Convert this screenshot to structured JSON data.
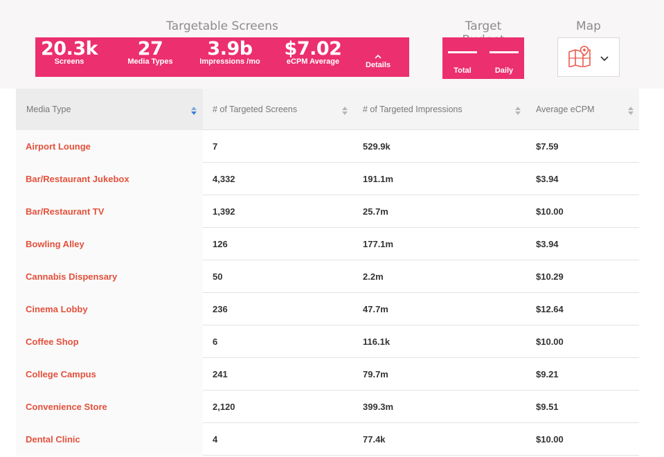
{
  "screens_section": {
    "title": "Targetable Screens",
    "stats": [
      {
        "value": "20.3k",
        "label": "Screens"
      },
      {
        "value": "27",
        "label": "Media Types"
      },
      {
        "value": "3.9b",
        "label": "Impressions /mo"
      },
      {
        "value": "$7.02",
        "label": "eCPM Average"
      }
    ],
    "details_label": "Details"
  },
  "budget_section": {
    "title": "Target Budget",
    "total_label": "Total",
    "daily_label": "Daily"
  },
  "map_section": {
    "title": "Map",
    "icon": "map-icon",
    "dropdown_icon": "chevron-down-icon"
  },
  "table": {
    "headers": [
      "Media Type",
      "# of Targeted Screens",
      "# of Targeted Impressions",
      "Average eCPM"
    ],
    "sorted_column": "Media Type",
    "rows": [
      [
        "Airport Lounge",
        "7",
        "529.9k",
        "$7.59"
      ],
      [
        "Bar/Restaurant Jukebox",
        "4,332",
        "191.1m",
        "$3.94"
      ],
      [
        "Bar/Restaurant TV",
        "1,392",
        "25.7m",
        "$10.00"
      ],
      [
        "Bowling Alley",
        "126",
        "177.1m",
        "$3.94"
      ],
      [
        "Cannabis Dispensary",
        "50",
        "2.2m",
        "$10.29"
      ],
      [
        "Cinema Lobby",
        "236",
        "47.7m",
        "$12.64"
      ],
      [
        "Coffee Shop",
        "6",
        "116.1k",
        "$10.00"
      ],
      [
        "College Campus",
        "241",
        "79.7m",
        "$9.21"
      ],
      [
        "Convenience Store",
        "2,120",
        "399.3m",
        "$9.51"
      ],
      [
        "Dental Clinic",
        "4",
        "77.4k",
        "$10.00"
      ]
    ]
  },
  "colors": {
    "accent": "#ec2f6e",
    "link": "#e3503b",
    "sort_active": "#3b7dd8"
  }
}
